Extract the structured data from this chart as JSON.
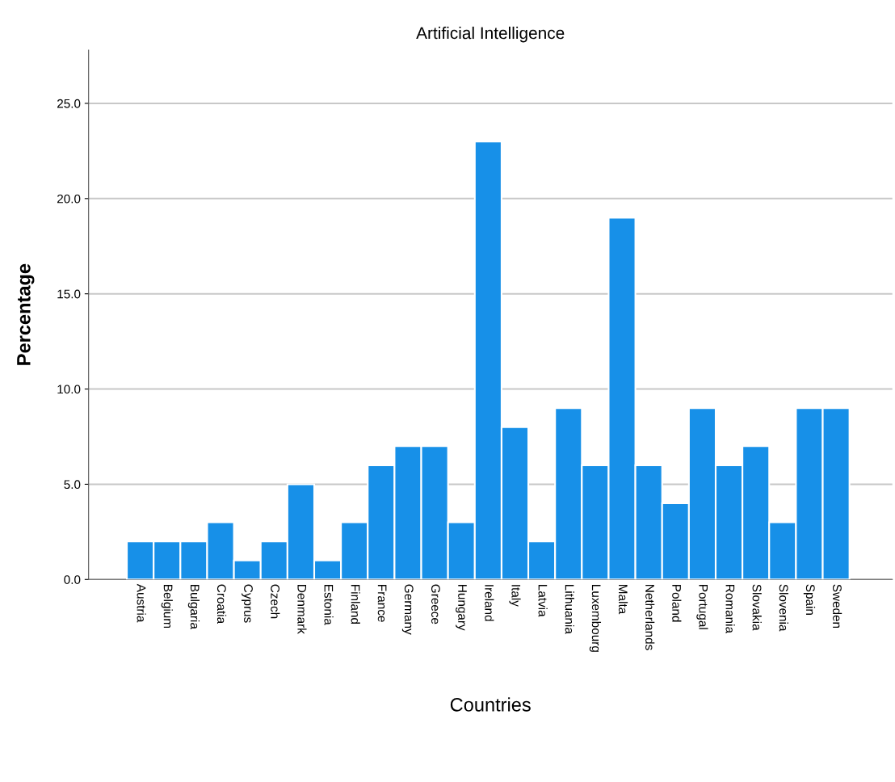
{
  "chart_data": {
    "type": "bar",
    "title": "Artificial Intelligence",
    "xlabel": "Countries",
    "ylabel": "Percentage",
    "categories": [
      "Austria",
      "Belgium",
      "Bulgaria",
      "Croatia",
      "Cyprus",
      "Czech",
      "Denmark",
      "Estonia",
      "Finland",
      "France",
      "Germany",
      "Greece",
      "Hungary",
      "Ireland",
      "Italy",
      "Latvia",
      "Lithuania",
      "Luxembourg",
      "Malta",
      "Netherlands",
      "Poland",
      "Portugal",
      "Romania",
      "Slovakia",
      "Slovenia",
      "Spain",
      "Sweden"
    ],
    "values": [
      2,
      2,
      2,
      3,
      1,
      2,
      5,
      1,
      3,
      6,
      7,
      7,
      3,
      23,
      8,
      2,
      9,
      6,
      19,
      6,
      4,
      9,
      6,
      7,
      3,
      9,
      9
    ],
    "color": "#1790e8",
    "ylim": [
      0,
      27.8
    ],
    "yticks": [
      {
        "value": 0,
        "label": "0.0"
      },
      {
        "value": 5,
        "label": "5.0"
      },
      {
        "value": 10,
        "label": "10.0"
      },
      {
        "value": 15,
        "label": "15.0"
      },
      {
        "value": 20,
        "label": "20.0"
      },
      {
        "value": 25,
        "label": "25.0"
      }
    ],
    "grid": "y"
  }
}
